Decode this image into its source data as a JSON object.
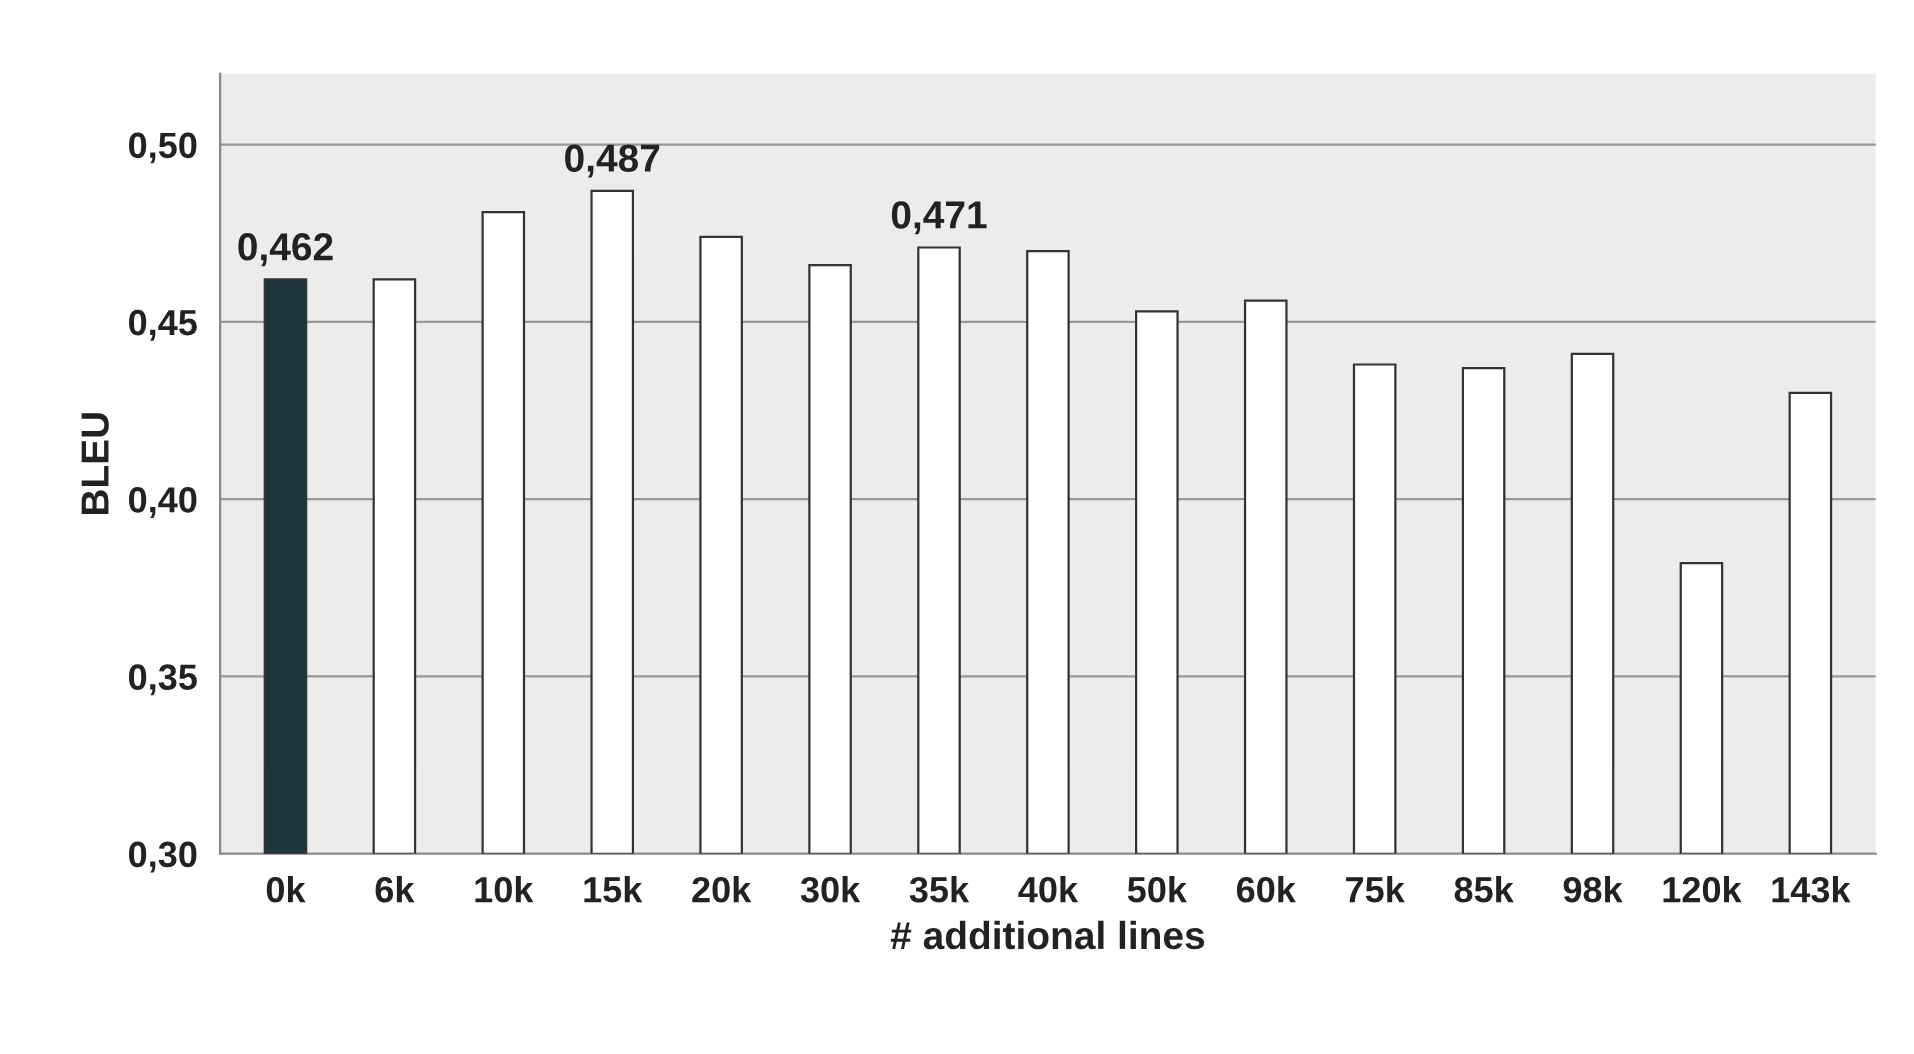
{
  "chart_data": {
    "type": "bar",
    "xlabel": "# additional lines",
    "ylabel": "BLEU",
    "categories": [
      "0k",
      "6k",
      "10k",
      "15k",
      "20k",
      "30k",
      "35k",
      "40k",
      "50k",
      "60k",
      "75k",
      "85k",
      "98k",
      "120k",
      "143k"
    ],
    "values": [
      0.462,
      0.462,
      0.481,
      0.487,
      0.474,
      0.466,
      0.471,
      0.47,
      0.453,
      0.456,
      0.438,
      0.437,
      0.441,
      0.382,
      0.43
    ],
    "colors": [
      "#1e3540",
      "#ffffff",
      "#ffffff",
      "#ffffff",
      "#ffffff",
      "#ffffff",
      "#ffffff",
      "#ffffff",
      "#ffffff",
      "#ffffff",
      "#ffffff",
      "#ffffff",
      "#ffffff",
      "#ffffff",
      "#ffffff"
    ],
    "value_labels": [
      "0,462",
      null,
      null,
      "0,487",
      null,
      null,
      "0,471",
      null,
      null,
      null,
      null,
      null,
      null,
      null,
      null
    ],
    "ylim": [
      0.3,
      0.52
    ],
    "yticks": [
      {
        "value": 0.3,
        "label": "0,30"
      },
      {
        "value": 0.35,
        "label": "0,35"
      },
      {
        "value": 0.4,
        "label": "0,40"
      },
      {
        "value": 0.45,
        "label": "0,45"
      },
      {
        "value": 0.5,
        "label": "0,50"
      }
    ],
    "grid": "y",
    "legend": false
  }
}
